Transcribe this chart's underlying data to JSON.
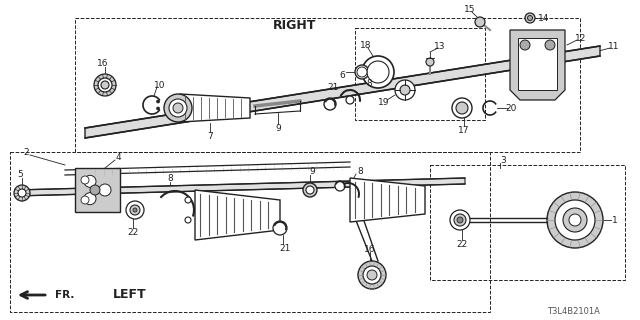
{
  "bg_color": "#ffffff",
  "line_color": "#222222",
  "right_label": "RIGHT",
  "left_label": "LEFT",
  "fr_label": "FR.",
  "diagram_code": "T3L4B2101A"
}
